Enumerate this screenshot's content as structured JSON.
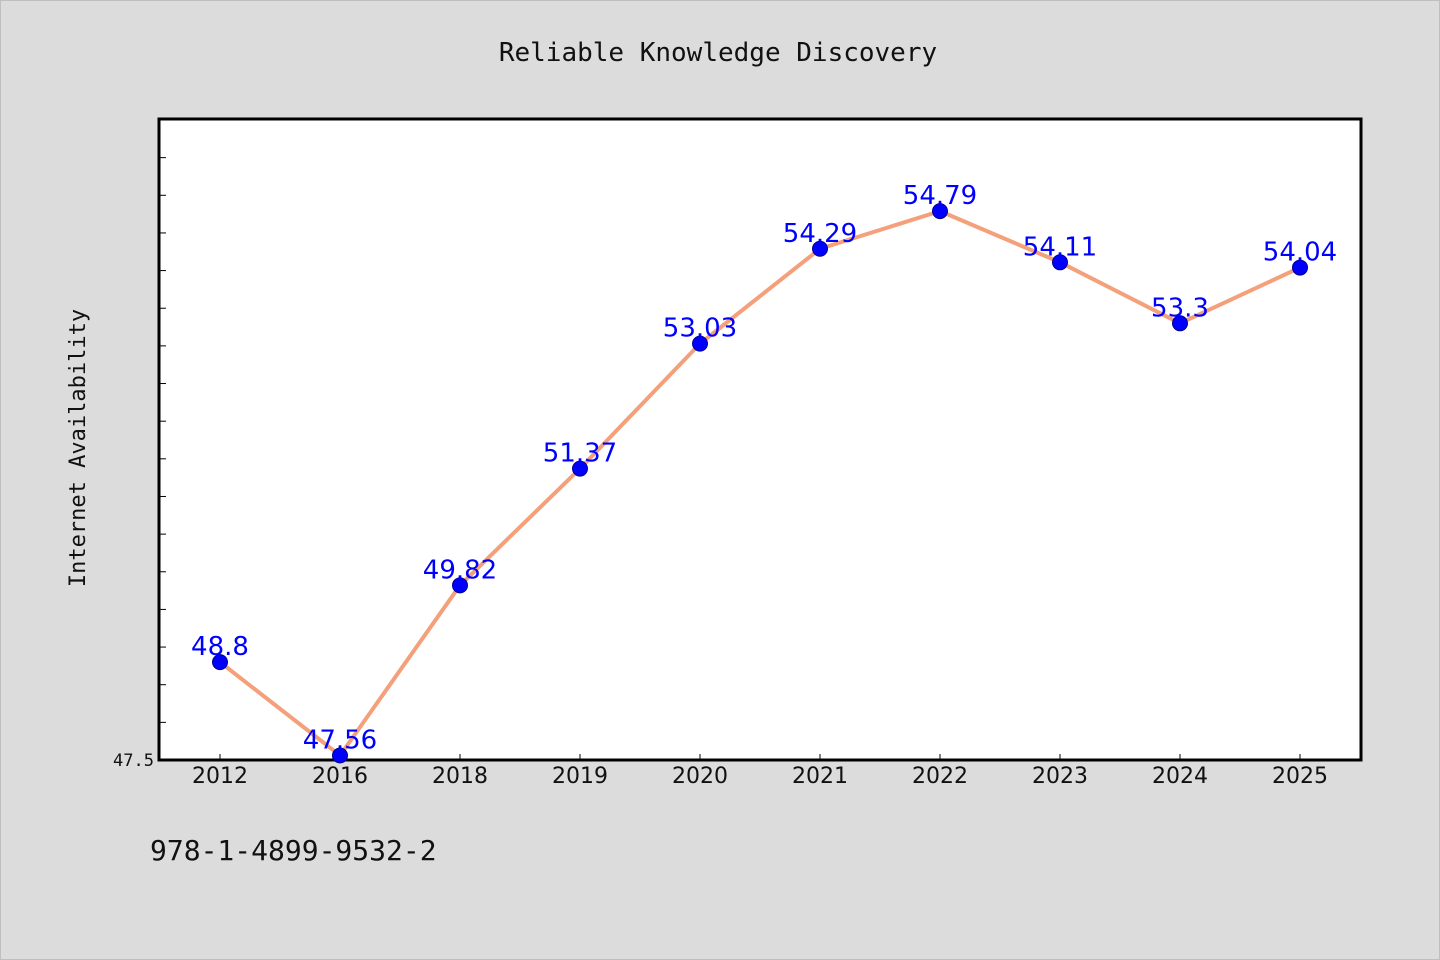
{
  "chart_data": {
    "type": "line",
    "title": "Reliable Knowledge Discovery",
    "xlabel": "",
    "ylabel": "Internet Availability",
    "categories": [
      "2012",
      "2016",
      "2018",
      "2019",
      "2020",
      "2021",
      "2022",
      "2023",
      "2024",
      "2025"
    ],
    "series": [
      {
        "values": [
          48.8,
          47.56,
          49.82,
          51.37,
          53.03,
          54.29,
          54.79,
          54.11,
          53.3,
          54.04
        ],
        "labels": [
          "48.8",
          "47.56",
          "49.82",
          "51.37",
          "53.03",
          "54.29",
          "54.79",
          "54.11",
          "53.3",
          "54.04"
        ]
      }
    ],
    "ylim": [
      47.5,
      56.0
    ],
    "ytick_labels": [
      "47.5"
    ],
    "minor_tick_step": 0.5,
    "grid": false,
    "legend": "none",
    "colors": {
      "line": "#f4a07a",
      "marker": "#0000ff",
      "data_label": "#0000ff",
      "background": "#dcdcdc",
      "plot_background": "#ffffff"
    }
  },
  "footnote": "978-1-4899-9532-2"
}
